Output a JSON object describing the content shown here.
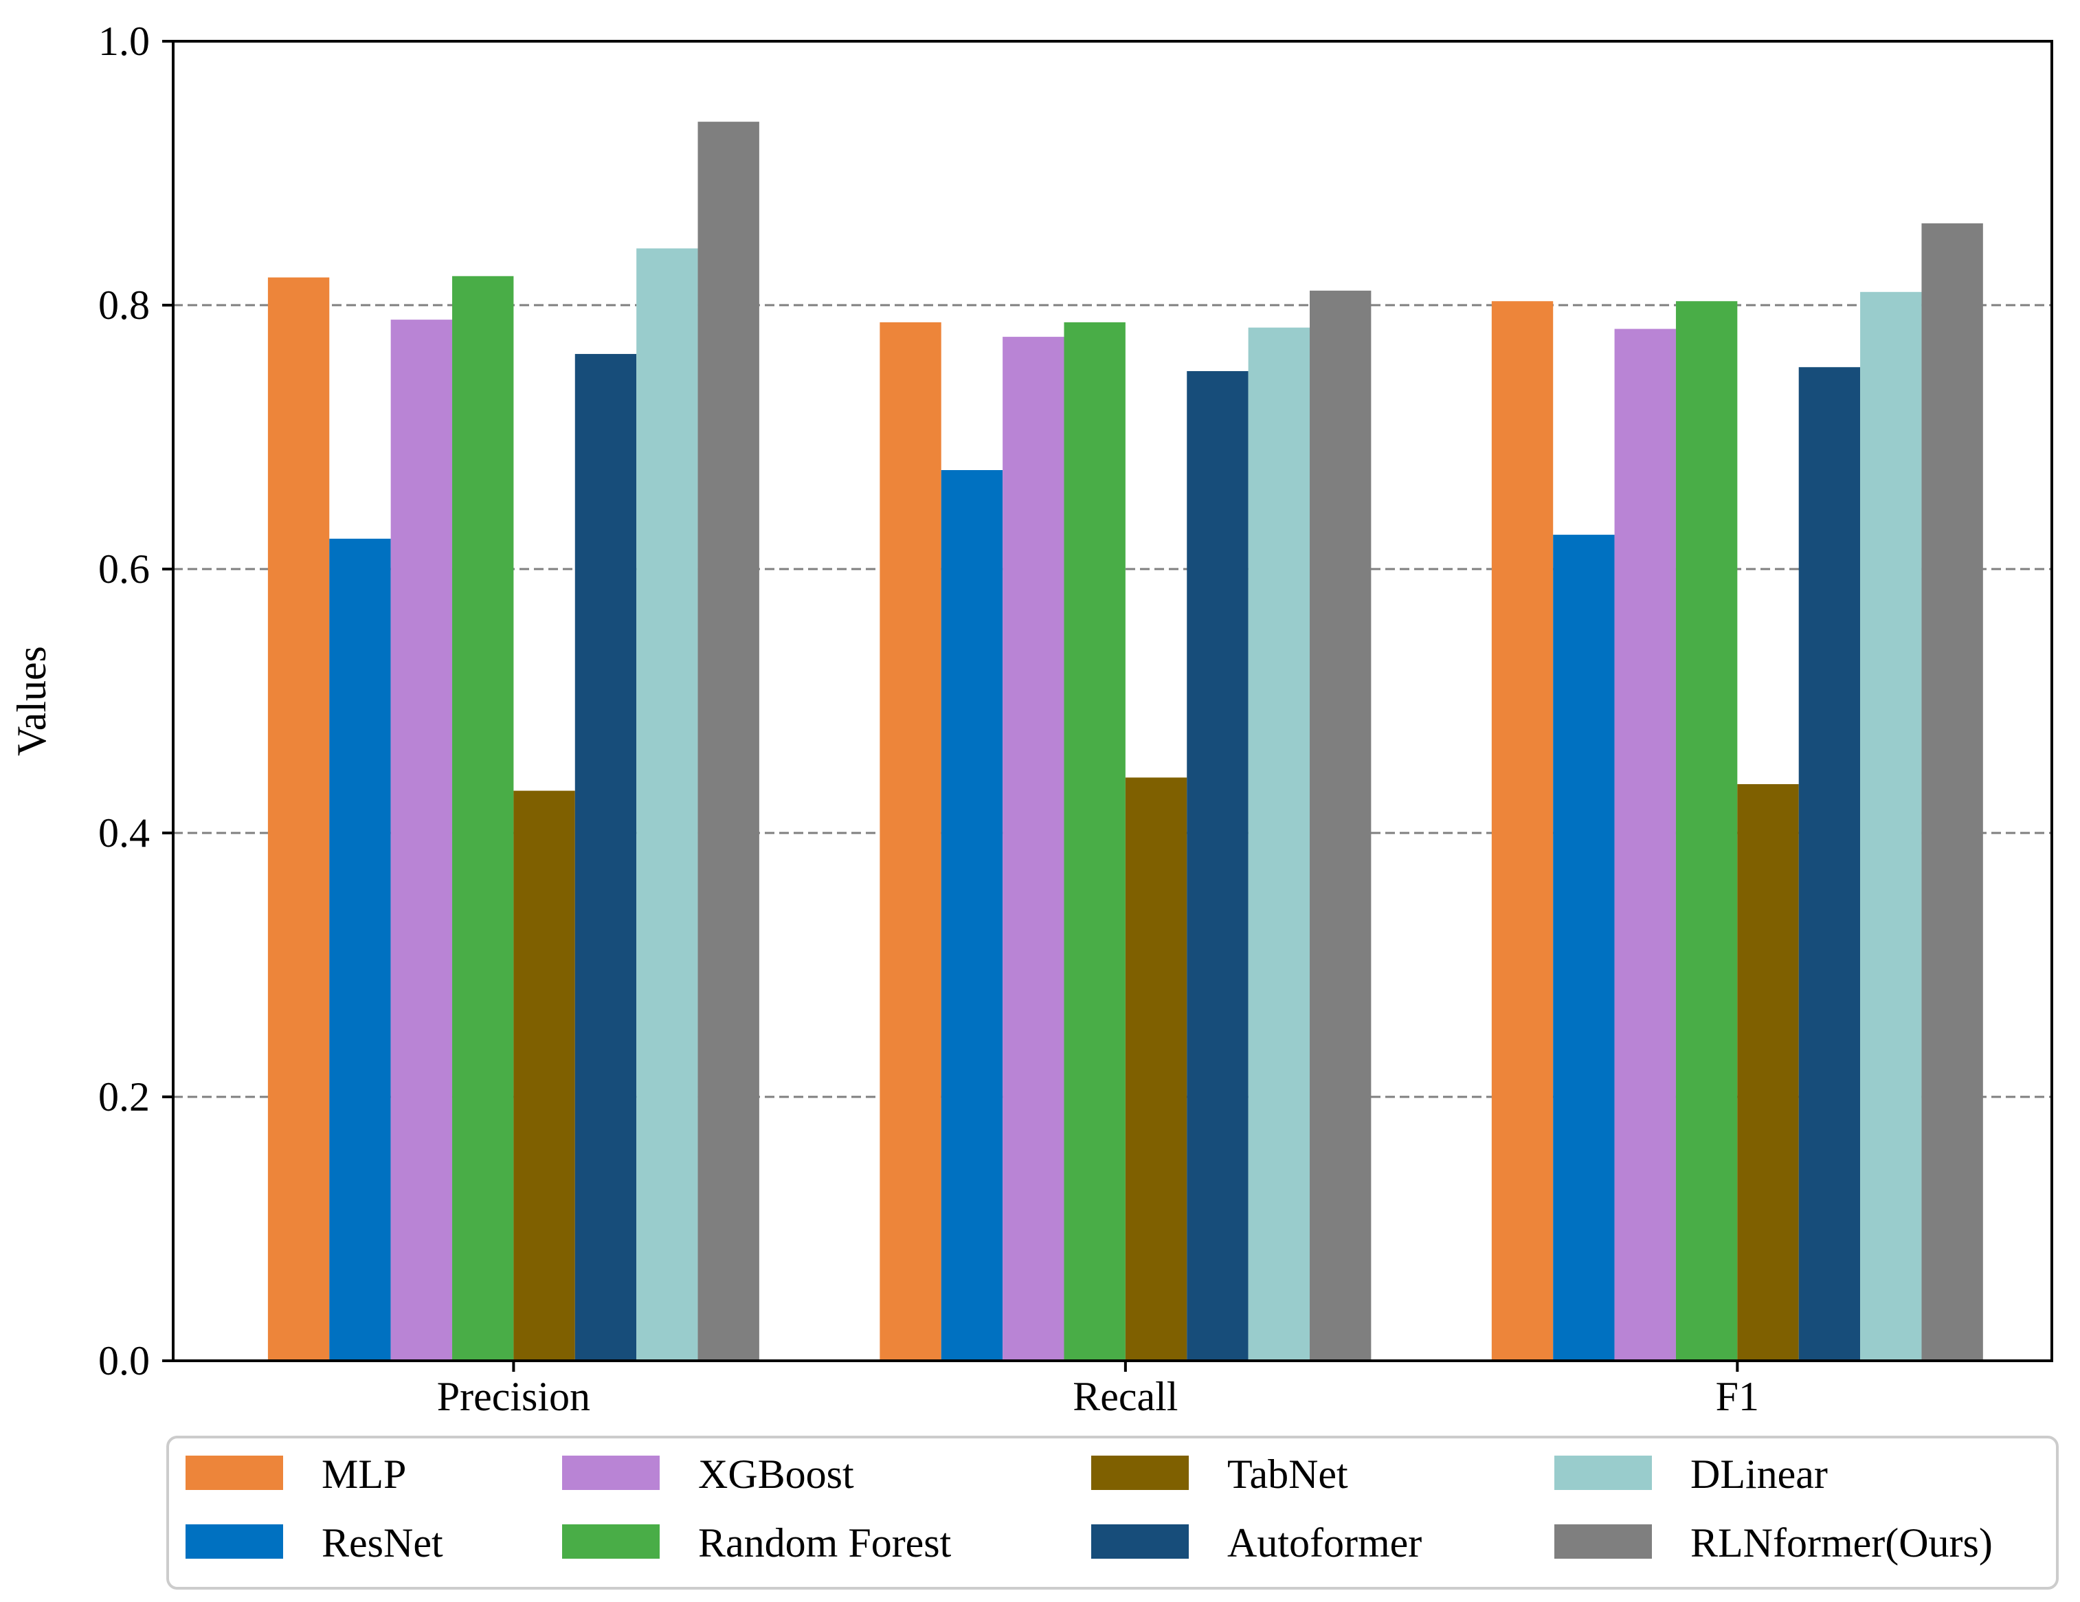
{
  "chart_data": {
    "type": "bar",
    "title": "",
    "xlabel": "",
    "ylabel": "Values",
    "ylim": [
      0,
      1.0
    ],
    "yticks": [
      "0.0",
      "0.2",
      "0.4",
      "0.6",
      "0.8",
      "1.0"
    ],
    "grid": "horizontal dashed",
    "categories": [
      "Precision",
      "Recall",
      "F1"
    ],
    "series": [
      {
        "name": "MLP",
        "color": "#ED853A",
        "values": [
          0.821,
          0.787,
          0.803
        ]
      },
      {
        "name": "ResNet",
        "color": "#0071C1",
        "values": [
          0.623,
          0.675,
          0.626
        ]
      },
      {
        "name": "XGBoost",
        "color": "#B984D5",
        "values": [
          0.789,
          0.776,
          0.782
        ]
      },
      {
        "name": "Random Forest",
        "color": "#49AD47",
        "values": [
          0.822,
          0.787,
          0.803
        ]
      },
      {
        "name": "TabNet",
        "color": "#7F6000",
        "values": [
          0.432,
          0.442,
          0.437
        ]
      },
      {
        "name": "Autoformer",
        "color": "#174D7A",
        "values": [
          0.763,
          0.75,
          0.753
        ]
      },
      {
        "name": "DLinear",
        "color": "#99CCCC",
        "values": [
          0.843,
          0.783,
          0.81
        ]
      },
      {
        "name": "RLNformer(Ours)",
        "color": "#7F7F7F",
        "values": [
          0.939,
          0.811,
          0.862
        ]
      }
    ],
    "legend": {
      "placement": "bottom",
      "columns": 4
    }
  }
}
